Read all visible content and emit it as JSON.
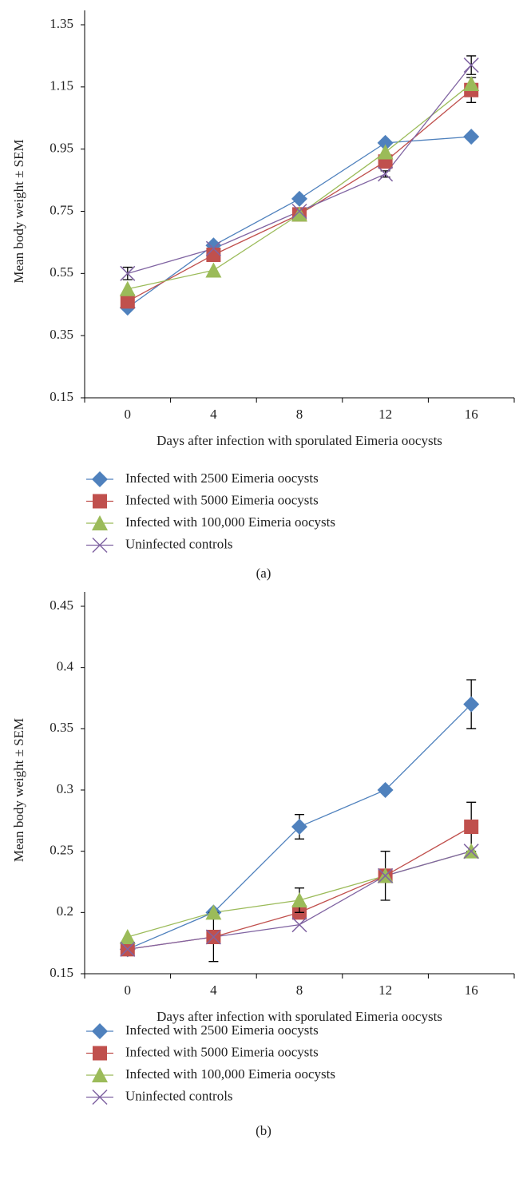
{
  "chart_data": [
    {
      "type": "line",
      "caption": "(a)",
      "x_label": "Days after infection with sporulated Eimeria oocysts",
      "y_label": "Mean body weight ± SEM",
      "categories": [
        "0",
        "4",
        "8",
        "12",
        "16"
      ],
      "ylim": [
        0.15,
        1.35
      ],
      "yticks": [
        0.15,
        0.35,
        0.55,
        0.75,
        0.95,
        1.15,
        1.35
      ],
      "series": [
        {
          "name": "Infected with 2500 Eimeria oocysts",
          "color": "#4f81bd",
          "marker": "diamond",
          "values": [
            0.44,
            0.64,
            0.79,
            0.97,
            0.99
          ]
        },
        {
          "name": "Infected with 5000 Eimeria oocysts",
          "color": "#c0504d",
          "marker": "square",
          "values": [
            0.46,
            0.61,
            0.74,
            0.91,
            1.14
          ],
          "errors": [
            null,
            null,
            null,
            null,
            0.04
          ]
        },
        {
          "name": "Infected with 100,000 Eimeria oocysts",
          "color": "#9bbb59",
          "marker": "triangle",
          "values": [
            0.5,
            0.56,
            0.74,
            0.94,
            1.16
          ]
        },
        {
          "name": "Uninfected controls",
          "color": "#8064a2",
          "marker": "x",
          "values": [
            0.55,
            0.63,
            0.75,
            0.87,
            1.22
          ],
          "errors": [
            0.02,
            null,
            null,
            0.01,
            0.03
          ]
        }
      ]
    },
    {
      "type": "line",
      "caption": "(b)",
      "x_label": "Days after infection with sporulated Eimeria oocysts",
      "y_label": "Mean body weight ± SEM",
      "categories": [
        "0",
        "4",
        "8",
        "12",
        "16"
      ],
      "ylim": [
        0.15,
        0.45
      ],
      "yticks": [
        0.15,
        0.2,
        0.25,
        0.3,
        0.35,
        0.4,
        0.45
      ],
      "series": [
        {
          "name": "Infected with 2500 Eimeria oocysts",
          "color": "#4f81bd",
          "marker": "diamond",
          "values": [
            0.17,
            0.2,
            0.27,
            0.3,
            0.37
          ],
          "errors": [
            null,
            null,
            0.01,
            null,
            0.02
          ]
        },
        {
          "name": "Infected with 5000 Eimeria oocysts",
          "color": "#c0504d",
          "marker": "square",
          "values": [
            0.17,
            0.18,
            0.2,
            0.23,
            0.27
          ],
          "errors": [
            null,
            0.02,
            null,
            0.02,
            0.02
          ]
        },
        {
          "name": "Infected with 100,000 Eimeria oocysts",
          "color": "#9bbb59",
          "marker": "triangle",
          "values": [
            0.18,
            0.2,
            0.21,
            0.23,
            0.25
          ],
          "errors": [
            null,
            null,
            0.01,
            null,
            null
          ]
        },
        {
          "name": "Uninfected controls",
          "color": "#8064a2",
          "marker": "x",
          "values": [
            0.17,
            0.18,
            0.19,
            0.23,
            0.25
          ]
        }
      ]
    }
  ]
}
